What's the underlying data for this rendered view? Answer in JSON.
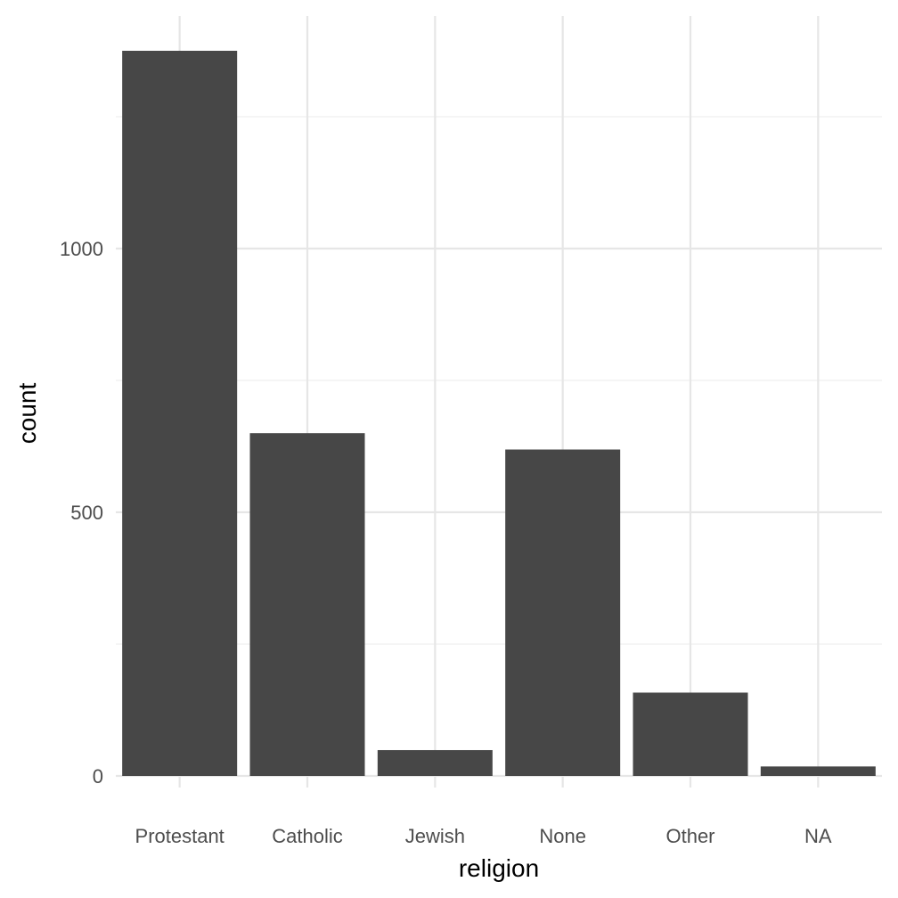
{
  "chart_data": {
    "type": "bar",
    "title": "",
    "xlabel": "religion",
    "ylabel": "count",
    "categories": [
      "Protestant",
      "Catholic",
      "Jewish",
      "None",
      "Other",
      "NA"
    ],
    "values": [
      1375,
      650,
      49,
      619,
      158,
      18
    ],
    "ylim": [
      0,
      1450
    ],
    "yticks": [
      0,
      500,
      1000
    ],
    "ytick_labels": [
      "0",
      "500",
      "1000"
    ],
    "minor_yticks": [
      250,
      750,
      1250
    ],
    "grid": true,
    "bar_color": "#474747",
    "theme": "minimal"
  }
}
